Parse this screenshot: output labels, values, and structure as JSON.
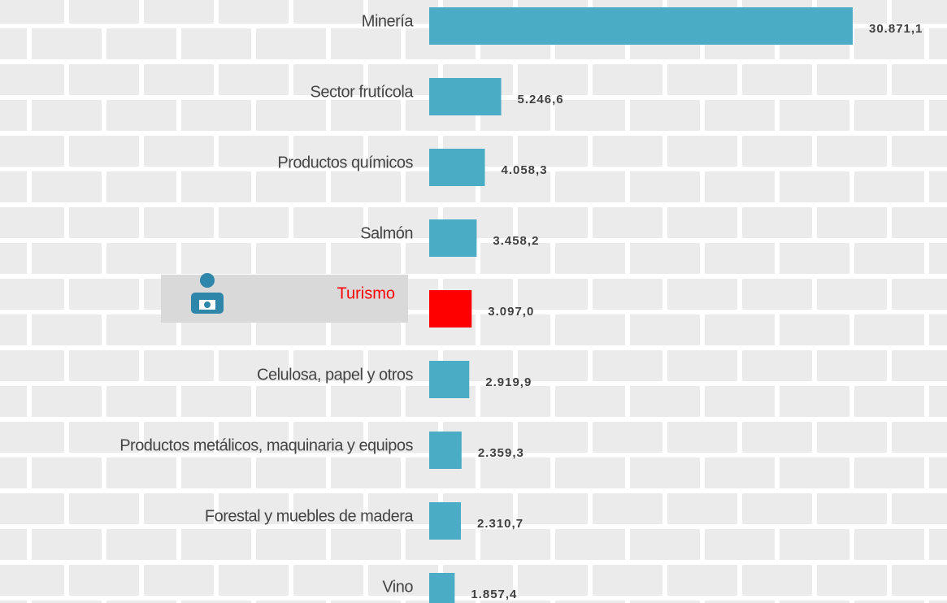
{
  "chart_data": {
    "type": "bar",
    "orientation": "horizontal",
    "categories": [
      "Minería",
      "Sector frutícola",
      "Productos químicos",
      "Salmón",
      "Turismo",
      "Celulosa, papel y otros",
      "Productos metálicos, maquinaria y equipos",
      "Forestal y muebles de madera",
      "Vino"
    ],
    "values": [
      30871.1,
      5246.6,
      4058.3,
      3458.2,
      3097.0,
      2919.9,
      2359.3,
      2310.7,
      1857.4
    ],
    "value_labels": [
      "30.871,1",
      "5.246,6",
      "4.058,3",
      "3.458,2",
      "3.097,0",
      "2.919,9",
      "2.359,3",
      "2.310,7",
      "1.857,4"
    ],
    "colors": [
      "#4bacc6",
      "#4bacc6",
      "#4bacc6",
      "#4bacc6",
      "#ff0000",
      "#4bacc6",
      "#4bacc6",
      "#4bacc6",
      "#4bacc6"
    ],
    "highlight_index": 4
  }
}
